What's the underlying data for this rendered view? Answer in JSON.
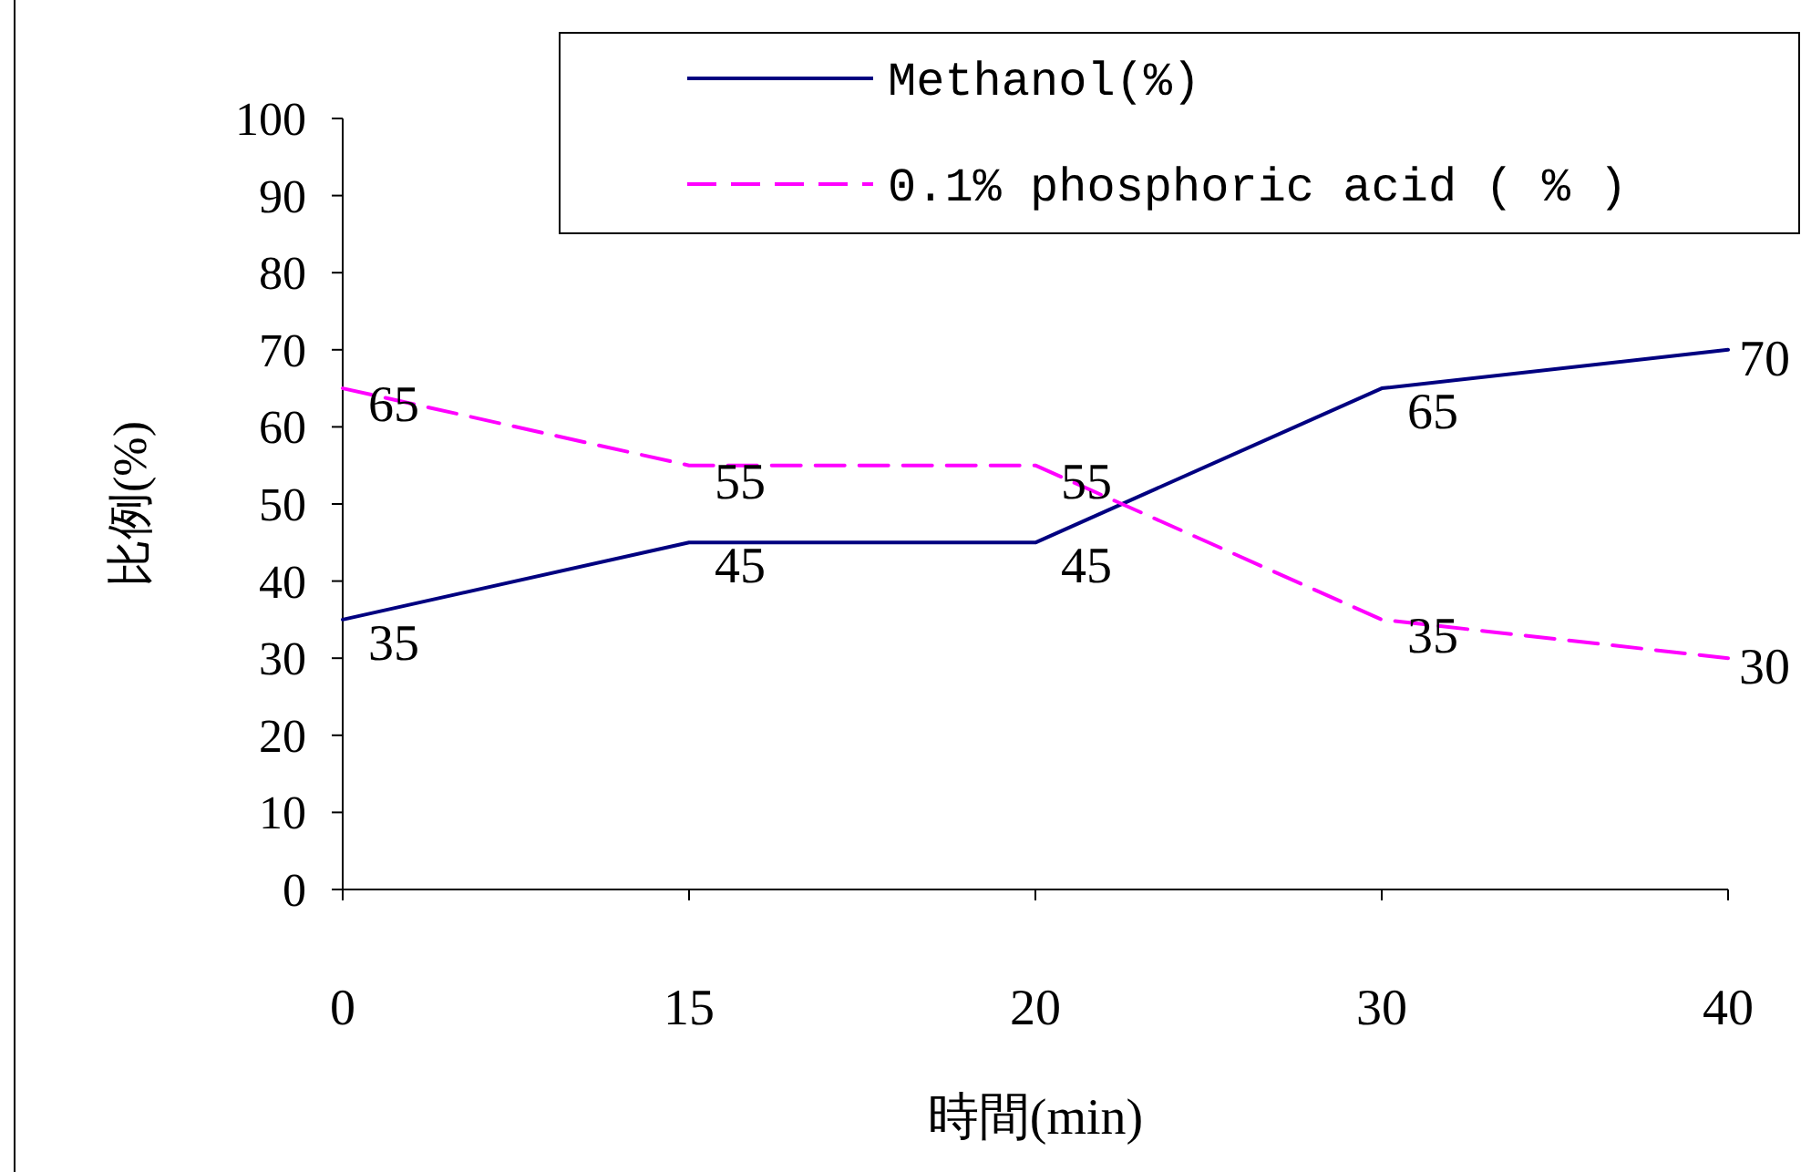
{
  "chart_data": {
    "type": "line",
    "xlabel": "時間(min)",
    "ylabel": "比例(%)",
    "categories": [
      "0",
      "15",
      "20",
      "30",
      "40"
    ],
    "ylim": [
      0,
      100
    ],
    "yticks": [
      0,
      10,
      20,
      30,
      40,
      50,
      60,
      70,
      80,
      90,
      100
    ],
    "series": [
      {
        "name": "Methanol(%)",
        "color": "#000080",
        "line_style": "solid",
        "values": [
          35,
          45,
          45,
          65,
          70
        ]
      },
      {
        "name": "0.1% phosphoric acid ( % )",
        "color": "#ff00ff",
        "line_style": "dashed",
        "values": [
          65,
          55,
          55,
          35,
          30
        ]
      }
    ],
    "data_labels": true,
    "legend": "top right",
    "grid": false,
    "marker": "none"
  }
}
